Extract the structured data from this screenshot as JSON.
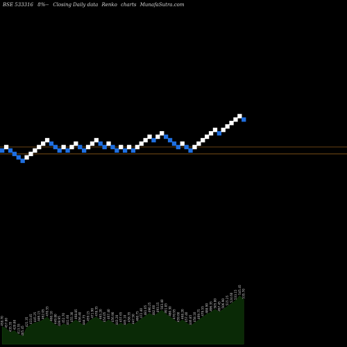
{
  "header": {
    "symbol": "BSE 533316",
    "change": "8%--",
    "description": "Closing Daily data",
    "chart_kind": "Renko",
    "chart_word": "charts",
    "site": "MunafaSutra.com"
  },
  "colors": {
    "background": "#000000",
    "up_brick": "#ffffff",
    "down_brick": "#1f6fe0",
    "reference_line": "#8a5a1a",
    "volume_fill": "#0a2a06"
  },
  "chart_data": {
    "type": "renko",
    "title": "",
    "reference_levels": [
      3,
      1
    ],
    "bricks": [
      {
        "level": 2,
        "dir": "down"
      },
      {
        "level": 3,
        "dir": "up"
      },
      {
        "level": 2,
        "dir": "down"
      },
      {
        "level": 1,
        "dir": "down"
      },
      {
        "level": 0,
        "dir": "down"
      },
      {
        "level": -1,
        "dir": "down"
      },
      {
        "level": 0,
        "dir": "up"
      },
      {
        "level": 1,
        "dir": "up"
      },
      {
        "level": 2,
        "dir": "up"
      },
      {
        "level": 3,
        "dir": "up"
      },
      {
        "level": 4,
        "dir": "up"
      },
      {
        "level": 5,
        "dir": "up"
      },
      {
        "level": 4,
        "dir": "down"
      },
      {
        "level": 3,
        "dir": "down"
      },
      {
        "level": 2,
        "dir": "down"
      },
      {
        "level": 3,
        "dir": "up"
      },
      {
        "level": 2,
        "dir": "down"
      },
      {
        "level": 3,
        "dir": "up"
      },
      {
        "level": 4,
        "dir": "up"
      },
      {
        "level": 3,
        "dir": "down"
      },
      {
        "level": 2,
        "dir": "down"
      },
      {
        "level": 3,
        "dir": "up"
      },
      {
        "level": 4,
        "dir": "up"
      },
      {
        "level": 5,
        "dir": "up"
      },
      {
        "level": 4,
        "dir": "down"
      },
      {
        "level": 3,
        "dir": "down"
      },
      {
        "level": 4,
        "dir": "up"
      },
      {
        "level": 3,
        "dir": "down"
      },
      {
        "level": 2,
        "dir": "down"
      },
      {
        "level": 3,
        "dir": "up"
      },
      {
        "level": 2,
        "dir": "down"
      },
      {
        "level": 3,
        "dir": "up"
      },
      {
        "level": 2,
        "dir": "down"
      },
      {
        "level": 3,
        "dir": "up"
      },
      {
        "level": 4,
        "dir": "up"
      },
      {
        "level": 5,
        "dir": "up"
      },
      {
        "level": 6,
        "dir": "up"
      },
      {
        "level": 5,
        "dir": "down"
      },
      {
        "level": 6,
        "dir": "up"
      },
      {
        "level": 7,
        "dir": "up"
      },
      {
        "level": 6,
        "dir": "down"
      },
      {
        "level": 5,
        "dir": "down"
      },
      {
        "level": 4,
        "dir": "down"
      },
      {
        "level": 3,
        "dir": "down"
      },
      {
        "level": 4,
        "dir": "up"
      },
      {
        "level": 3,
        "dir": "down"
      },
      {
        "level": 2,
        "dir": "down"
      },
      {
        "level": 3,
        "dir": "up"
      },
      {
        "level": 4,
        "dir": "up"
      },
      {
        "level": 5,
        "dir": "up"
      },
      {
        "level": 6,
        "dir": "up"
      },
      {
        "level": 7,
        "dir": "up"
      },
      {
        "level": 8,
        "dir": "up"
      },
      {
        "level": 7,
        "dir": "down"
      },
      {
        "level": 8,
        "dir": "up"
      },
      {
        "level": 9,
        "dir": "up"
      },
      {
        "level": 10,
        "dir": "up"
      },
      {
        "level": 11,
        "dir": "up"
      },
      {
        "level": 12,
        "dir": "up"
      },
      {
        "level": 11,
        "dir": "down"
      }
    ],
    "volume": [
      {
        "value": 0.36,
        "label": "458.70"
      },
      {
        "value": 0.32,
        "label": "457.80"
      },
      {
        "value": 0.24,
        "label": "435.35"
      },
      {
        "value": 0.28,
        "label": "420.80"
      },
      {
        "value": 0.2,
        "label": "413.55"
      },
      {
        "value": 0.16,
        "label": "405.45"
      },
      {
        "value": 0.34,
        "label": "421.35"
      },
      {
        "value": 0.4,
        "label": "433.45"
      },
      {
        "value": 0.44,
        "label": "445.25"
      },
      {
        "value": 0.46,
        "label": "446.15"
      },
      {
        "value": 0.5,
        "label": "462.05"
      },
      {
        "value": 0.56,
        "label": "470.55"
      },
      {
        "value": 0.46,
        "label": "460.10"
      },
      {
        "value": 0.4,
        "label": "449.80"
      },
      {
        "value": 0.36,
        "label": "439.95"
      },
      {
        "value": 0.42,
        "label": "452.70"
      },
      {
        "value": 0.38,
        "label": "441.60"
      },
      {
        "value": 0.44,
        "label": "455.30"
      },
      {
        "value": 0.5,
        "label": "468.85"
      },
      {
        "value": 0.44,
        "label": "456.40"
      },
      {
        "value": 0.38,
        "label": "444.75"
      },
      {
        "value": 0.46,
        "label": "459.15"
      },
      {
        "value": 0.52,
        "label": "471.90"
      },
      {
        "value": 0.56,
        "label": "478.35"
      },
      {
        "value": 0.5,
        "label": "465.20"
      },
      {
        "value": 0.44,
        "label": "454.05"
      },
      {
        "value": 0.5,
        "label": "467.40"
      },
      {
        "value": 0.44,
        "label": "456.90"
      },
      {
        "value": 0.38,
        "label": "443.20"
      },
      {
        "value": 0.44,
        "label": "457.65"
      },
      {
        "value": 0.38,
        "label": "445.10"
      },
      {
        "value": 0.44,
        "label": "458.35"
      },
      {
        "value": 0.4,
        "label": "447.50"
      },
      {
        "value": 0.46,
        "label": "460.75"
      },
      {
        "value": 0.52,
        "label": "472.40"
      },
      {
        "value": 0.58,
        "label": "481.05"
      },
      {
        "value": 0.64,
        "label": "490.25"
      },
      {
        "value": 0.58,
        "label": "482.60"
      },
      {
        "value": 0.64,
        "label": "493.15"
      },
      {
        "value": 0.7,
        "label": "503.40"
      },
      {
        "value": 0.62,
        "label": "491.85"
      },
      {
        "value": 0.56,
        "label": "480.30"
      },
      {
        "value": 0.5,
        "label": "470.95"
      },
      {
        "value": 0.44,
        "label": "459.60"
      },
      {
        "value": 0.5,
        "label": "468.20"
      },
      {
        "value": 0.44,
        "label": "457.40"
      },
      {
        "value": 0.38,
        "label": "446.85"
      },
      {
        "value": 0.44,
        "label": "458.10"
      },
      {
        "value": 0.5,
        "label": "469.75"
      },
      {
        "value": 0.56,
        "label": "479.55"
      },
      {
        "value": 0.62,
        "label": "488.90"
      },
      {
        "value": 0.66,
        "label": "496.35"
      },
      {
        "value": 0.72,
        "label": "505.80"
      },
      {
        "value": 0.66,
        "label": "497.45"
      },
      {
        "value": 0.72,
        "label": "506.90"
      },
      {
        "value": 0.78,
        "label": "515.25"
      },
      {
        "value": 0.84,
        "label": "524.60"
      },
      {
        "value": 0.9,
        "label": "533.15"
      },
      {
        "value": 1.0,
        "label": "545.45"
      },
      {
        "value": 0.92,
        "label": "535.70"
      }
    ]
  }
}
